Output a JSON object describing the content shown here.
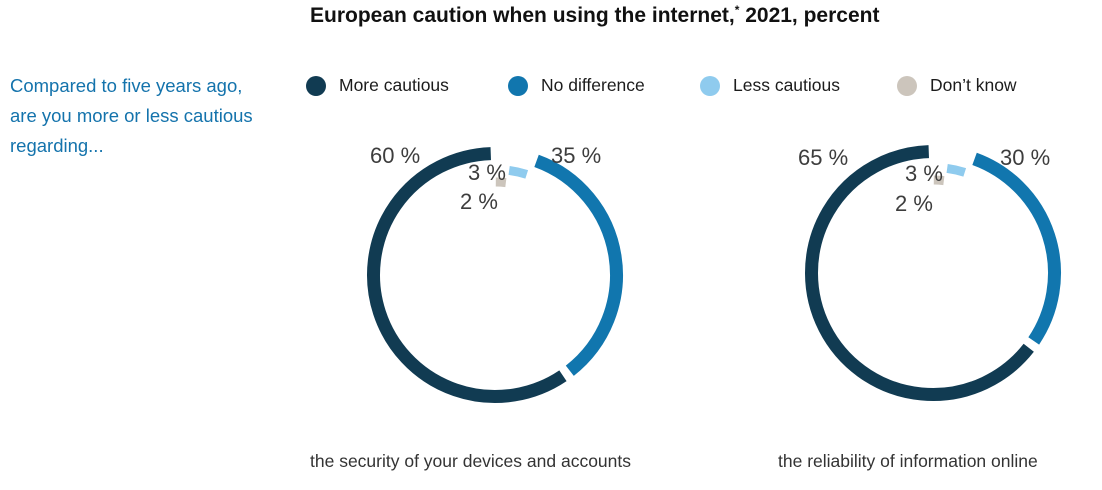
{
  "title": {
    "part1": "European caution when using the internet,",
    "asterisk": "*",
    "part2": " 2021, percent"
  },
  "intro_text": "Compared to five years ago, are you more or less cautious regarding...",
  "legend": {
    "items": [
      {
        "label": "More cautious",
        "color": "#113b52"
      },
      {
        "label": "No difference",
        "color": "#1176ae"
      },
      {
        "label": "Less cautious",
        "color": "#8fcbee"
      },
      {
        "label": "Don’t know",
        "color": "#ccc5bc"
      }
    ]
  },
  "chart_data": [
    {
      "type": "donut",
      "title": "the security of your devices and accounts",
      "categories": [
        "More cautious",
        "No difference",
        "Less cautious",
        "Don’t know"
      ],
      "values": [
        60,
        35,
        3,
        2
      ],
      "labels": [
        "60 %",
        "35 %",
        "3 %",
        "2 %"
      ],
      "unit": "percent",
      "legend_position": "top",
      "start_angle_deg": 0,
      "direction": "counterclockwise"
    },
    {
      "type": "donut",
      "title": "the reliability of information online",
      "categories": [
        "More cautious",
        "No difference",
        "Less cautious",
        "Don’t know"
      ],
      "values": [
        65,
        30,
        3,
        2
      ],
      "labels": [
        "65 %",
        "30 %",
        "3 %",
        "2 %"
      ],
      "unit": "percent",
      "legend_position": "top",
      "start_angle_deg": 0,
      "direction": "counterclockwise"
    }
  ],
  "colors": {
    "background": "#ffffff",
    "title_text": "#111111",
    "intro_text": "#1473ac",
    "value_label_text": "#3d3d3d"
  }
}
